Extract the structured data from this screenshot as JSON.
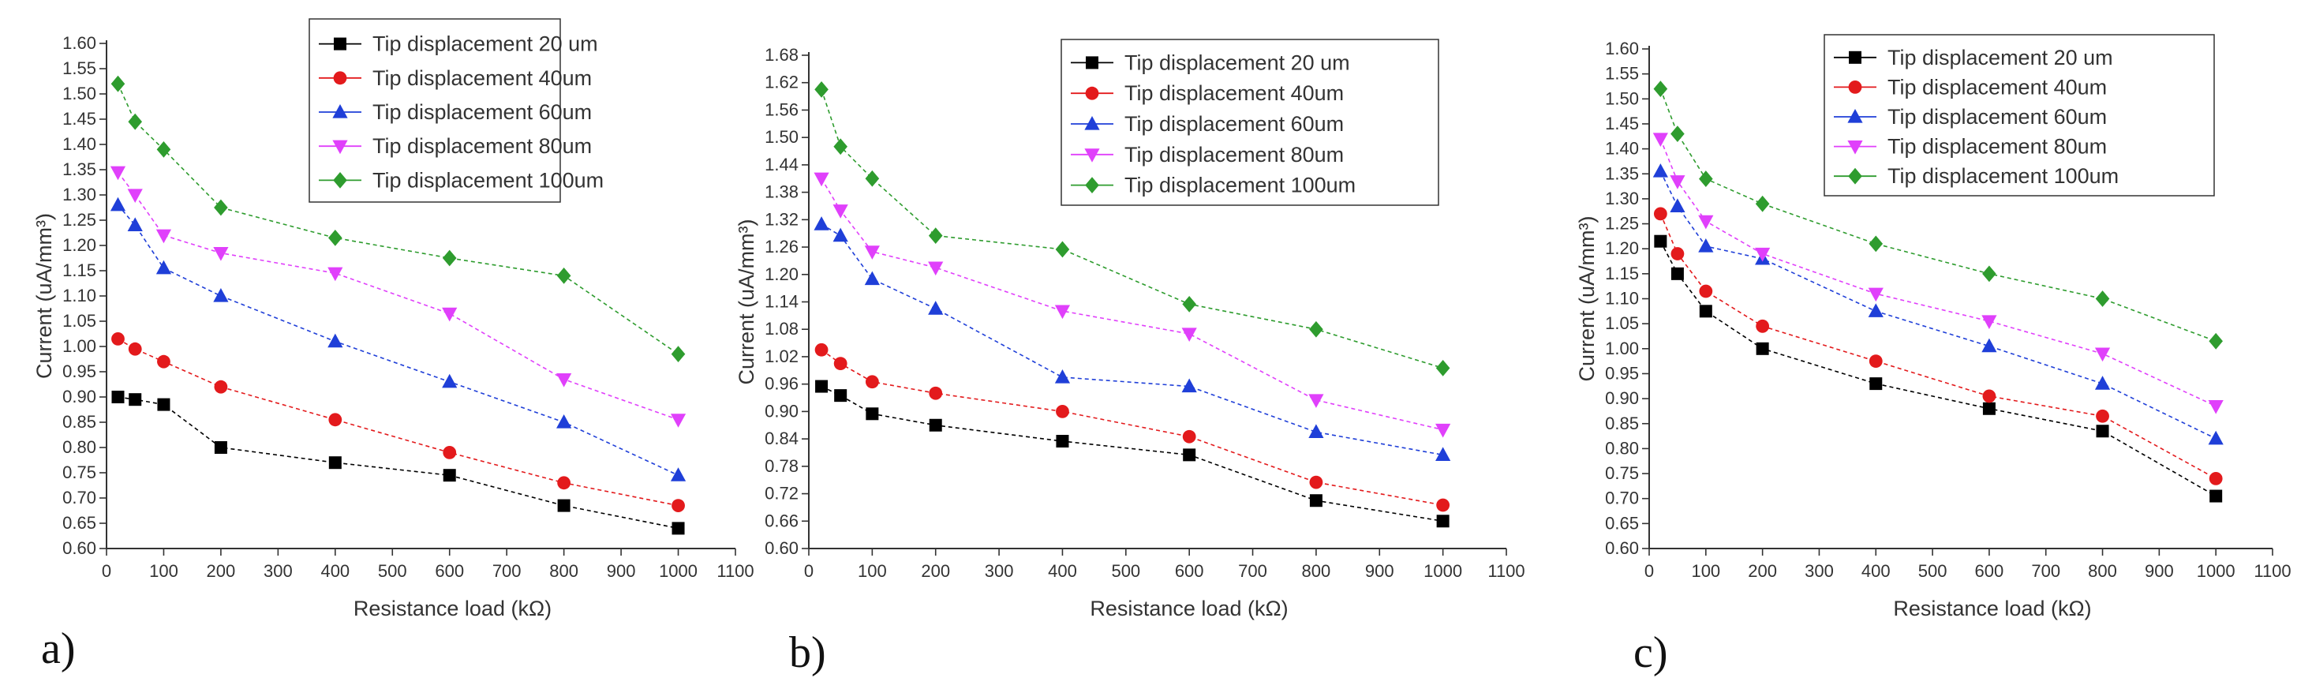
{
  "figure_panels": [
    "a)",
    "b)",
    "c)"
  ],
  "chart_data": [
    {
      "type": "line",
      "panel_label": "a)",
      "title": "",
      "xlabel": "Resistance load (kΩ)",
      "ylabel": "Current (uA/mm³)",
      "xlim": [
        0,
        1100
      ],
      "ylim": [
        0.6,
        1.6
      ],
      "x_ticks": [
        0,
        100,
        200,
        300,
        400,
        500,
        600,
        700,
        800,
        900,
        1000,
        1100
      ],
      "y_ticks": [
        0.6,
        0.65,
        0.7,
        0.75,
        0.8,
        0.85,
        0.9,
        0.95,
        1.0,
        1.05,
        1.1,
        1.15,
        1.2,
        1.25,
        1.3,
        1.35,
        1.4,
        1.45,
        1.5,
        1.55,
        1.6
      ],
      "y_tick_labels": [
        "0.60",
        "0.65",
        "0.70",
        "0.75",
        "0.80",
        "0.85",
        "0.90",
        "0.95",
        "1.00",
        "1.05",
        "1.10",
        "1.15",
        "1.20",
        "1.25",
        "1.30",
        "1.35",
        "1.40",
        "1.45",
        "1.50",
        "1.55",
        "1.60"
      ],
      "legend_position": "top-right",
      "x": [
        20,
        50,
        100,
        200,
        400,
        600,
        800,
        1000
      ],
      "series": [
        {
          "name": "Tip displacement 20 um",
          "color": "#000000",
          "marker": "square",
          "values": [
            0.9,
            0.895,
            0.885,
            0.8,
            0.77,
            0.745,
            0.685,
            0.64
          ]
        },
        {
          "name": "Tip displacement 40um",
          "color": "#e31a1c",
          "marker": "circle",
          "values": [
            1.015,
            0.995,
            0.97,
            0.92,
            0.855,
            0.79,
            0.73,
            0.685
          ]
        },
        {
          "name": "Tip displacement 60um",
          "color": "#1f3fd8",
          "marker": "triangle-up",
          "values": [
            1.28,
            1.24,
            1.155,
            1.1,
            1.01,
            0.93,
            0.85,
            0.745
          ]
        },
        {
          "name": "Tip displacement 80um",
          "color": "#e040fb",
          "marker": "triangle-down",
          "values": [
            1.345,
            1.3,
            1.22,
            1.185,
            1.145,
            1.065,
            0.935,
            0.855
          ]
        },
        {
          "name": "Tip displacement 100um",
          "color": "#2e9c2e",
          "marker": "diamond",
          "values": [
            1.52,
            1.445,
            1.39,
            1.275,
            1.215,
            1.175,
            1.14,
            0.985
          ]
        }
      ]
    },
    {
      "type": "line",
      "panel_label": "b)",
      "title": "",
      "xlabel": "Resistance load (kΩ)",
      "ylabel": "Current (uA/mm³)",
      "xlim": [
        0,
        1100
      ],
      "ylim": [
        0.6,
        1.68
      ],
      "x_ticks": [
        0,
        100,
        200,
        300,
        400,
        500,
        600,
        700,
        800,
        900,
        1000,
        1100
      ],
      "y_ticks": [
        0.6,
        0.66,
        0.72,
        0.78,
        0.84,
        0.9,
        0.96,
        1.02,
        1.08,
        1.14,
        1.2,
        1.26,
        1.32,
        1.38,
        1.44,
        1.5,
        1.56,
        1.62,
        1.68
      ],
      "y_tick_labels": [
        "0.60",
        "0.66",
        "0.72",
        "0.78",
        "0.84",
        "0.90",
        "0.96",
        "1.02",
        "1.08",
        "1.14",
        "1.20",
        "1.26",
        "1.32",
        "1.38",
        "1.44",
        "1.50",
        "1.56",
        "1.62",
        "1.68"
      ],
      "legend_position": "top-right",
      "x": [
        20,
        50,
        100,
        200,
        400,
        600,
        800,
        1000
      ],
      "series": [
        {
          "name": "Tip displacement 20 um",
          "color": "#000000",
          "marker": "square",
          "values": [
            0.955,
            0.935,
            0.895,
            0.87,
            0.835,
            0.805,
            0.705,
            0.66
          ]
        },
        {
          "name": "Tip displacement 40um",
          "color": "#e31a1c",
          "marker": "circle",
          "values": [
            1.035,
            1.005,
            0.965,
            0.94,
            0.9,
            0.845,
            0.745,
            0.695
          ]
        },
        {
          "name": "Tip displacement 60um",
          "color": "#1f3fd8",
          "marker": "triangle-up",
          "values": [
            1.31,
            1.285,
            1.19,
            1.125,
            0.975,
            0.955,
            0.855,
            0.805
          ]
        },
        {
          "name": "Tip displacement 80um",
          "color": "#e040fb",
          "marker": "triangle-down",
          "values": [
            1.41,
            1.34,
            1.25,
            1.215,
            1.12,
            1.07,
            0.925,
            0.86
          ]
        },
        {
          "name": "Tip displacement 100um",
          "color": "#2e9c2e",
          "marker": "diamond",
          "values": [
            1.605,
            1.48,
            1.41,
            1.285,
            1.255,
            1.135,
            1.08,
            0.995
          ]
        }
      ]
    },
    {
      "type": "line",
      "panel_label": "c)",
      "title": "",
      "xlabel": "Resistance load (kΩ)",
      "ylabel": "Current (uA/mm³)",
      "xlim": [
        0,
        1100
      ],
      "ylim": [
        0.6,
        1.6
      ],
      "x_ticks": [
        0,
        100,
        200,
        300,
        400,
        500,
        600,
        700,
        800,
        900,
        1000,
        1100
      ],
      "y_ticks": [
        0.6,
        0.65,
        0.7,
        0.75,
        0.8,
        0.85,
        0.9,
        0.95,
        1.0,
        1.05,
        1.1,
        1.15,
        1.2,
        1.25,
        1.3,
        1.35,
        1.4,
        1.45,
        1.5,
        1.55,
        1.6
      ],
      "y_tick_labels": [
        "0.60",
        "0.65",
        "0.70",
        "0.75",
        "0.80",
        "0.85",
        "0.90",
        "0.95",
        "1.00",
        "1.05",
        "1.10",
        "1.15",
        "1.20",
        "1.25",
        "1.30",
        "1.35",
        "1.40",
        "1.45",
        "1.50",
        "1.55",
        "1.60"
      ],
      "legend_position": "top-right",
      "x": [
        20,
        50,
        100,
        200,
        400,
        600,
        800,
        1000
      ],
      "series": [
        {
          "name": "Tip displacement 20 um",
          "color": "#000000",
          "marker": "square",
          "values": [
            1.215,
            1.15,
            1.075,
            1.0,
            0.93,
            0.88,
            0.835,
            0.705
          ]
        },
        {
          "name": "Tip displacement 40um",
          "color": "#e31a1c",
          "marker": "circle",
          "values": [
            1.27,
            1.19,
            1.115,
            1.045,
            0.975,
            0.905,
            0.865,
            0.74
          ]
        },
        {
          "name": "Tip displacement 60um",
          "color": "#1f3fd8",
          "marker": "triangle-up",
          "values": [
            1.355,
            1.285,
            1.205,
            1.18,
            1.075,
            1.005,
            0.93,
            0.82
          ]
        },
        {
          "name": "Tip displacement 80um",
          "color": "#e040fb",
          "marker": "triangle-down",
          "values": [
            1.42,
            1.335,
            1.255,
            1.19,
            1.11,
            1.055,
            0.99,
            0.885
          ]
        },
        {
          "name": "Tip displacement 100um",
          "color": "#2e9c2e",
          "marker": "diamond",
          "values": [
            1.52,
            1.43,
            1.34,
            1.29,
            1.21,
            1.15,
            1.1,
            1.015
          ]
        }
      ]
    }
  ]
}
